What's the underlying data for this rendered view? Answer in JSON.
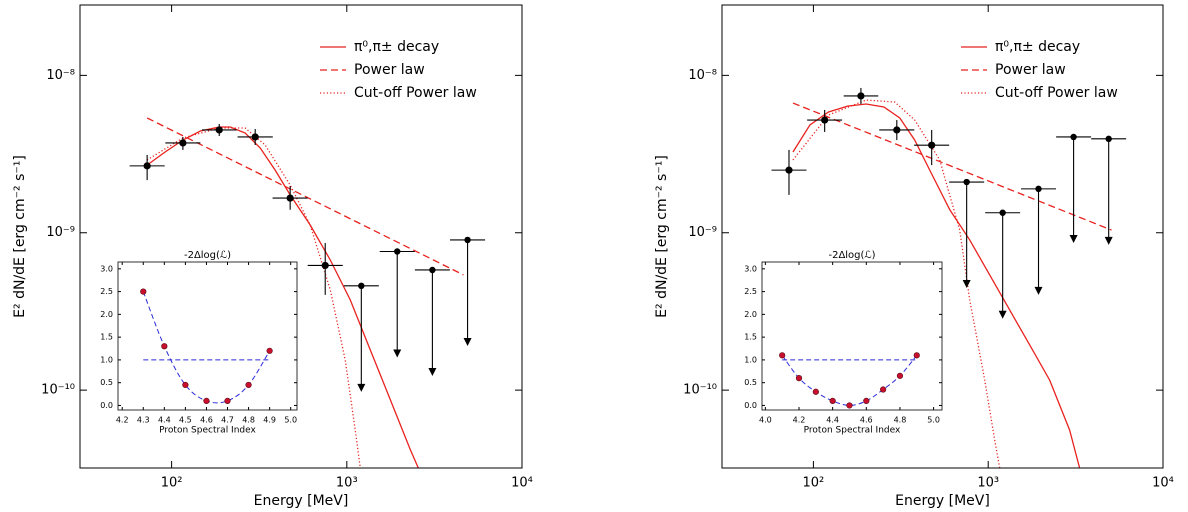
{
  "chart_data": [
    {
      "type": "errorbar",
      "xlabel": "Energy [MeV]",
      "ylabel": "E² dN/dE [erg cm⁻² s⁻¹]",
      "log_x": true,
      "log_y": true,
      "xlim": [
        30,
        10000
      ],
      "ylim": [
        3.2e-11,
        2.8e-08
      ],
      "xticks": [
        {
          "value": 100,
          "label": "10²"
        },
        {
          "value": 1000,
          "label": "10³"
        },
        {
          "value": 10000,
          "label": "10⁴"
        }
      ],
      "yticks": [
        {
          "value": 1e-10,
          "label": "10⁻¹⁰"
        },
        {
          "value": 1e-09,
          "label": "10⁻⁹"
        },
        {
          "value": 1e-08,
          "label": "10⁻⁸"
        }
      ],
      "legend": "upper right",
      "series": [
        {
          "name": "π⁰,π± decay",
          "color": "#e8221e",
          "style": "solid",
          "x": [
            72.4,
            91.8,
            116,
            146,
            187,
            216,
            263,
            321,
            390,
            475,
            618,
            805,
            1047,
            1362,
            1774,
            2307,
            2560
          ],
          "values": [
            2.69e-09,
            3.26e-09,
            3.88e-09,
            4.43e-09,
            4.7e-09,
            4.7e-09,
            4.3e-09,
            3.45e-09,
            2.5e-09,
            1.74e-09,
            1.12e-09,
            6.71e-10,
            3.74e-10,
            1.8e-10,
            8.66e-11,
            4.17e-11,
            3.2e-11
          ]
        },
        {
          "name": "Power law",
          "color": "#e8221e",
          "style": "dashed",
          "x": [
            72.5,
            4630
          ],
          "values": [
            5.36e-09,
            5.4e-10
          ]
        },
        {
          "name": "Cut-off Power law",
          "color": "#e8221e",
          "style": "dotted",
          "x": [
            72.4,
            116,
            187,
            263,
            342,
            475,
            618,
            805,
            979,
            1117,
            1194
          ],
          "values": [
            2.9e-09,
            4e-09,
            4.63e-09,
            4.63e-09,
            3.61e-09,
            2.01e-09,
            1.12e-09,
            4.33e-10,
            1.56e-10,
            5.58e-11,
            3.2e-11
          ]
        }
      ],
      "points": {
        "color": "#000000",
        "x": [
          72.5,
          116,
          187,
          300,
          475,
          753
        ],
        "values": [
          2.66e-09,
          3.72e-09,
          4.5e-09,
          4.06e-09,
          1.66e-09,
          6.2e-10
        ],
        "x_low": [
          57.6,
          92.1,
          149,
          238,
          377,
          598
        ],
        "x_high": [
          91.3,
          146,
          235,
          378,
          598,
          948
        ],
        "y_low": [
          2.16e-09,
          3.36e-09,
          4.12e-09,
          3.61e-09,
          1.4e-09,
          4.03e-10
        ],
        "y_high": [
          3.12e-09,
          4.06e-09,
          4.91e-09,
          4.56e-09,
          1.98e-09,
          8.6e-10
        ]
      },
      "upper_limits": {
        "color": "#000000",
        "x": [
          1210,
          1940,
          3080,
          4890
        ],
        "values": [
          4.6e-10,
          7.6e-10,
          5.8e-10,
          9e-10
        ],
        "x_low": [
          961,
          1541,
          2446,
          3884
        ],
        "x_high": [
          1523,
          2442,
          3878,
          6156
        ]
      }
    },
    {
      "type": "scatter",
      "title": "-2Δlog(ℒ)",
      "xlabel": "Proton Spectral Index",
      "xlim": [
        4.18,
        5.03
      ],
      "ylim": [
        -0.1,
        3.15
      ],
      "xticks": [
        4.2,
        4.3,
        4.4,
        4.5,
        4.6,
        4.7,
        4.8,
        4.9,
        {
          "value": 5,
          "label": "5.0"
        }
      ],
      "yticks": [
        {
          "value": 0,
          "label": "0.0"
        },
        0.5,
        {
          "value": 1,
          "label": "1.0"
        },
        1.5,
        {
          "value": 2,
          "label": "2.0"
        },
        2.5,
        {
          "value": 3,
          "label": "3.0"
        }
      ],
      "x": [
        4.3,
        4.4,
        4.5,
        4.6,
        4.7,
        4.8,
        4.9
      ],
      "values": [
        2.5,
        1.3,
        0.45,
        0.1,
        0.1,
        0.45,
        1.2
      ],
      "color": "#c8102e",
      "line_color": "#2b2bd9",
      "hline": 1
    },
    {
      "type": "errorbar",
      "xlabel": "Energy [MeV]",
      "ylabel": "E² dN/dE [erg cm⁻² s⁻¹]",
      "log_x": true,
      "log_y": true,
      "xlim": [
        30,
        10000
      ],
      "ylim": [
        3.2e-11,
        2.8e-08
      ],
      "xticks": [
        {
          "value": 100,
          "label": "10²"
        },
        {
          "value": 1000,
          "label": "10³"
        },
        {
          "value": 10000,
          "label": "10⁴"
        }
      ],
      "yticks": [
        {
          "value": 1e-10,
          "label": "10⁻¹⁰"
        },
        {
          "value": 1e-09,
          "label": "10⁻⁹"
        },
        {
          "value": 1e-08,
          "label": "10⁻⁸"
        }
      ],
      "legend": "upper right",
      "series": [
        {
          "name": "π⁰,π± decay",
          "color": "#e8221e",
          "style": "solid",
          "x": [
            76.4,
            95.5,
            122,
            157,
            200,
            253,
            312,
            380,
            463,
            603,
            784,
            1019,
            1327,
            1726,
            2245,
            2922,
            3334
          ],
          "values": [
            3.26e-09,
            4.84e-09,
            5.85e-09,
            6.38e-09,
            6.58e-09,
            6.3e-09,
            5.36e-09,
            3.88e-09,
            2.5e-09,
            1.4e-09,
            9e-10,
            5.4e-10,
            3.23e-10,
            1.94e-10,
            1.16e-10,
            5.58e-11,
            3.2e-11
          ]
        },
        {
          "name": "Power law",
          "color": "#e8221e",
          "style": "dashed",
          "x": [
            76.4,
            5080
          ],
          "values": [
            6.67e-09,
            1.04e-09
          ]
        },
        {
          "name": "Cut-off Power law",
          "color": "#e8221e",
          "style": "dotted",
          "x": [
            76.4,
            122,
            200,
            292,
            380,
            528,
            687,
            784,
            955,
            1089,
            1164
          ],
          "values": [
            2.9e-09,
            5.6e-09,
            6.97e-09,
            6.77e-09,
            5.2e-09,
            2.9e-09,
            1.04e-09,
            3.74e-10,
            1.16e-10,
            4.82e-11,
            3.2e-11
          ]
        }
      ],
      "points": {
        "color": "#000000",
        "x": [
          72.5,
          116,
          187,
          300,
          475
        ],
        "values": [
          2.5e-09,
          5.2e-09,
          7.4e-09,
          4.5e-09,
          3.6e-09
        ],
        "x_low": [
          57.6,
          92.1,
          149,
          238,
          377
        ],
        "x_high": [
          91.3,
          146,
          235,
          378,
          598
        ],
        "y_low": [
          1.74e-09,
          4.37e-09,
          6.58e-09,
          3.88e-09,
          2.69e-09
        ],
        "y_high": [
          3.36e-09,
          6.03e-09,
          8.32e-09,
          5.2e-09,
          4.5e-09
        ]
      },
      "upper_limits": {
        "color": "#000000",
        "x": [
          753,
          1210,
          1940,
          3080,
          4890
        ],
        "values": [
          2.1e-09,
          1.34e-09,
          1.9e-09,
          4.06e-09,
          3.95e-09
        ],
        "x_low": [
          598,
          961,
          1541,
          2446,
          3884
        ],
        "x_high": [
          948,
          1523,
          2442,
          3878,
          6156
        ]
      }
    },
    {
      "type": "scatter",
      "title": "-2Δlog(ℒ)",
      "xlabel": "Proton Spectral Index",
      "xlim": [
        3.98,
        5.05
      ],
      "ylim": [
        -0.1,
        3.15
      ],
      "xticks": [
        {
          "value": 4,
          "label": "4.0"
        },
        4.2,
        4.4,
        4.6,
        4.8,
        {
          "value": 5,
          "label": "5.0"
        }
      ],
      "yticks": [
        {
          "value": 0,
          "label": "0.0"
        },
        0.5,
        {
          "value": 1,
          "label": "1.0"
        },
        1.5,
        {
          "value": 2,
          "label": "2.0"
        },
        2.5,
        {
          "value": 3,
          "label": "3.0"
        }
      ],
      "x": [
        4.1,
        4.2,
        4.3,
        4.4,
        4.5,
        4.6,
        4.7,
        4.8,
        4.9
      ],
      "values": [
        1.1,
        0.6,
        0.3,
        0.1,
        0.0,
        0.1,
        0.35,
        0.65,
        1.1
      ],
      "color": "#c8102e",
      "line_color": "#2b2bd9",
      "hline": 1
    }
  ]
}
